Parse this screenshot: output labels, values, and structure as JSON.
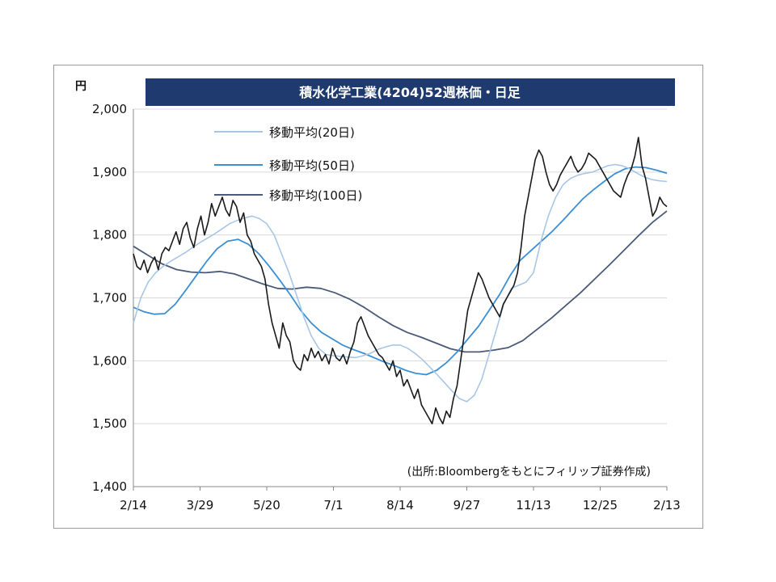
{
  "colors": {
    "price": "#1a1a1a",
    "ma20": "#a9c6e6",
    "ma50": "#3b8fd4",
    "ma100": "#4a5a78",
    "title_bg": "#1f3a6e",
    "grid": "#d9d9d9"
  },
  "chart_data": {
    "type": "line",
    "title": "積水化学工業(4204)52週株価・日足",
    "ylabel": "円",
    "ylim": [
      1400,
      2000
    ],
    "yticks": [
      "1,400",
      "1,500",
      "1,600",
      "1,700",
      "1,800",
      "1,900",
      "2,000"
    ],
    "ytick_values": [
      1400,
      1500,
      1600,
      1700,
      1800,
      1900,
      2000
    ],
    "x_labels": [
      "2/14",
      "3/29",
      "5/20",
      "7/1",
      "8/14",
      "9/27",
      "11/13",
      "12/25",
      "2/13"
    ],
    "grid": "horizontal",
    "legend_position": "top-left",
    "annotation": "(出所:Bloombergをもとにフィリップ証券作成)",
    "series": [
      {
        "name": "",
        "key": "price",
        "values": [
          1770,
          1750,
          1745,
          1760,
          1740,
          1755,
          1765,
          1745,
          1770,
          1780,
          1775,
          1790,
          1805,
          1785,
          1810,
          1820,
          1795,
          1780,
          1810,
          1830,
          1800,
          1820,
          1850,
          1830,
          1845,
          1860,
          1840,
          1830,
          1855,
          1845,
          1820,
          1835,
          1800,
          1790,
          1770,
          1760,
          1750,
          1730,
          1690,
          1660,
          1640,
          1620,
          1660,
          1640,
          1630,
          1600,
          1590,
          1585,
          1610,
          1600,
          1620,
          1605,
          1615,
          1600,
          1610,
          1595,
          1620,
          1605,
          1600,
          1610,
          1595,
          1615,
          1630,
          1660,
          1670,
          1655,
          1640,
          1630,
          1620,
          1610,
          1605,
          1595,
          1585,
          1600,
          1575,
          1585,
          1560,
          1570,
          1555,
          1540,
          1555,
          1530,
          1520,
          1510,
          1500,
          1525,
          1510,
          1500,
          1520,
          1510,
          1540,
          1560,
          1600,
          1640,
          1680,
          1700,
          1720,
          1740,
          1730,
          1715,
          1700,
          1690,
          1680,
          1670,
          1690,
          1700,
          1710,
          1720,
          1740,
          1780,
          1830,
          1860,
          1890,
          1920,
          1935,
          1925,
          1900,
          1880,
          1870,
          1880,
          1895,
          1905,
          1915,
          1925,
          1910,
          1900,
          1905,
          1915,
          1930,
          1925,
          1920,
          1910,
          1900,
          1890,
          1880,
          1870,
          1865,
          1860,
          1880,
          1895,
          1905,
          1925,
          1955,
          1910,
          1890,
          1860,
          1830,
          1840,
          1860,
          1850,
          1845
        ]
      },
      {
        "name": "移動平均(20日)",
        "key": "ma20",
        "values": [
          1660,
          1700,
          1725,
          1740,
          1750,
          1758,
          1765,
          1772,
          1780,
          1788,
          1795,
          1802,
          1810,
          1818,
          1823,
          1827,
          1830,
          1826,
          1818,
          1800,
          1770,
          1740,
          1705,
          1670,
          1640,
          1620,
          1610,
          1608,
          1607,
          1606,
          1605,
          1608,
          1612,
          1618,
          1622,
          1625,
          1625,
          1620,
          1612,
          1602,
          1590,
          1578,
          1565,
          1552,
          1540,
          1535,
          1545,
          1570,
          1610,
          1650,
          1690,
          1715,
          1720,
          1725,
          1740,
          1790,
          1830,
          1860,
          1880,
          1890,
          1895,
          1898,
          1900,
          1905,
          1910,
          1912,
          1910,
          1905,
          1898,
          1892,
          1888,
          1886,
          1885
        ]
      },
      {
        "name": "移動平均(50日)",
        "key": "ma50",
        "values": [
          1685,
          1678,
          1674,
          1675,
          1690,
          1712,
          1735,
          1758,
          1778,
          1790,
          1793,
          1785,
          1770,
          1750,
          1728,
          1705,
          1680,
          1660,
          1645,
          1635,
          1625,
          1618,
          1612,
          1605,
          1598,
          1592,
          1585,
          1580,
          1578,
          1585,
          1598,
          1615,
          1635,
          1655,
          1680,
          1705,
          1735,
          1760,
          1775,
          1790,
          1805,
          1822,
          1840,
          1858,
          1872,
          1885,
          1897,
          1905,
          1908,
          1907,
          1903,
          1898
        ]
      },
      {
        "name": "移動平均(100日)",
        "key": "ma100",
        "values": [
          1782,
          1768,
          1754,
          1745,
          1741,
          1740,
          1742,
          1738,
          1730,
          1722,
          1715,
          1714,
          1717,
          1715,
          1708,
          1698,
          1685,
          1670,
          1656,
          1645,
          1637,
          1628,
          1619,
          1614,
          1614,
          1617,
          1621,
          1632,
          1650,
          1668,
          1688,
          1708,
          1730,
          1752,
          1775,
          1798,
          1820,
          1838
        ]
      }
    ]
  }
}
